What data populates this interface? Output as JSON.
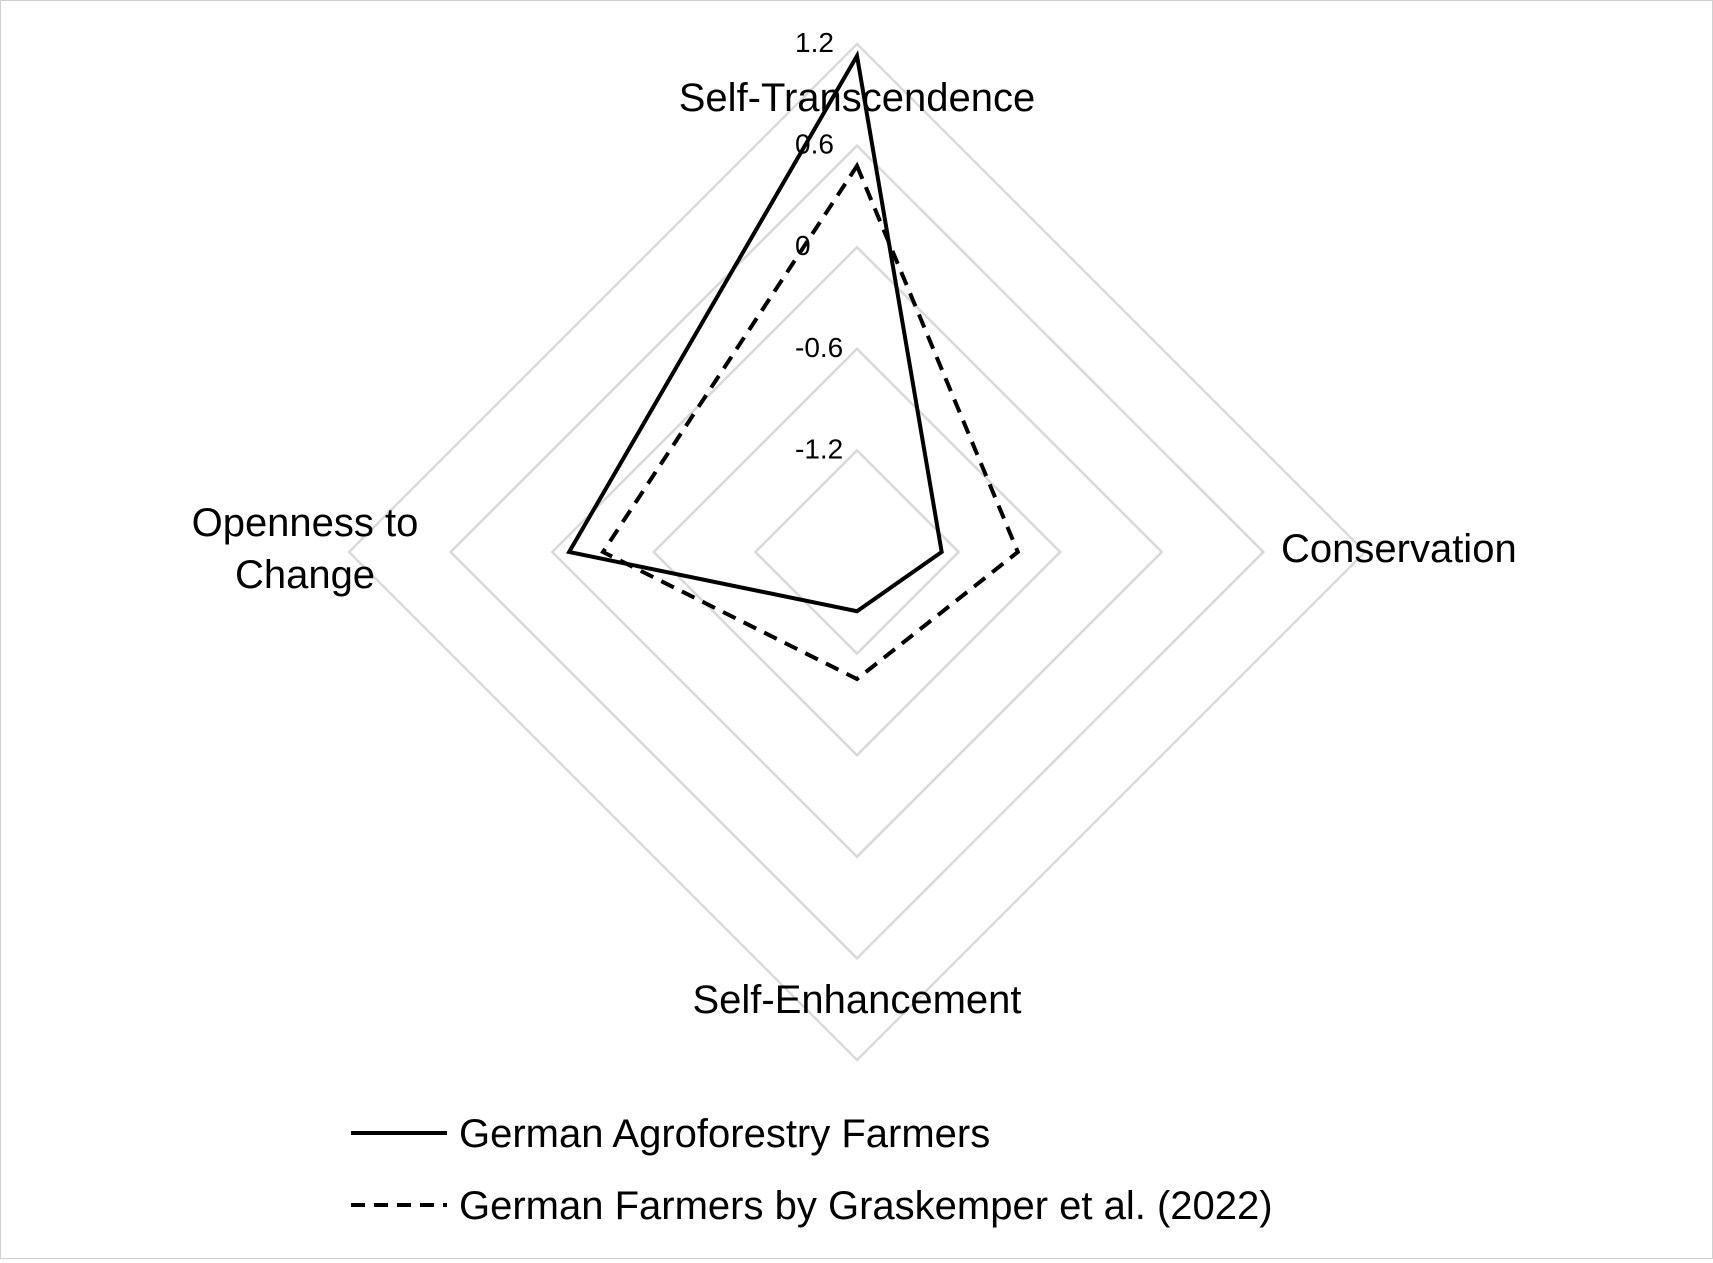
{
  "chart_data": {
    "type": "radar",
    "axes": [
      "Self-Transcendence",
      "Conservation",
      "Self-Enhancement",
      "Openness to Change"
    ],
    "axis_label_lines": [
      [
        "Self-Transcendence"
      ],
      [
        "Conservation"
      ],
      [
        "Self-Enhancement"
      ],
      [
        "Openness to",
        "Change"
      ]
    ],
    "range": [
      -1.8,
      1.2
    ],
    "ticks": [
      1.2,
      0.6,
      0,
      -0.6,
      -1.2
    ],
    "tick_labels": [
      "1.2",
      "0.6",
      "0",
      "-0.6",
      "-1.2"
    ],
    "grid": true,
    "gridline_color": "#d9d9d9",
    "legend_position": "bottom",
    "series": [
      {
        "name": "German Agroforestry Farmers",
        "line_style": "solid",
        "color": "#000000",
        "values": [
          1.13,
          -1.3,
          -1.45,
          -0.1
        ]
      },
      {
        "name": "German Farmers by Graskemper et al. (2022)",
        "line_style": "dashed",
        "color": "#000000",
        "values": [
          0.48,
          -0.85,
          -1.05,
          -0.3
        ]
      }
    ]
  }
}
